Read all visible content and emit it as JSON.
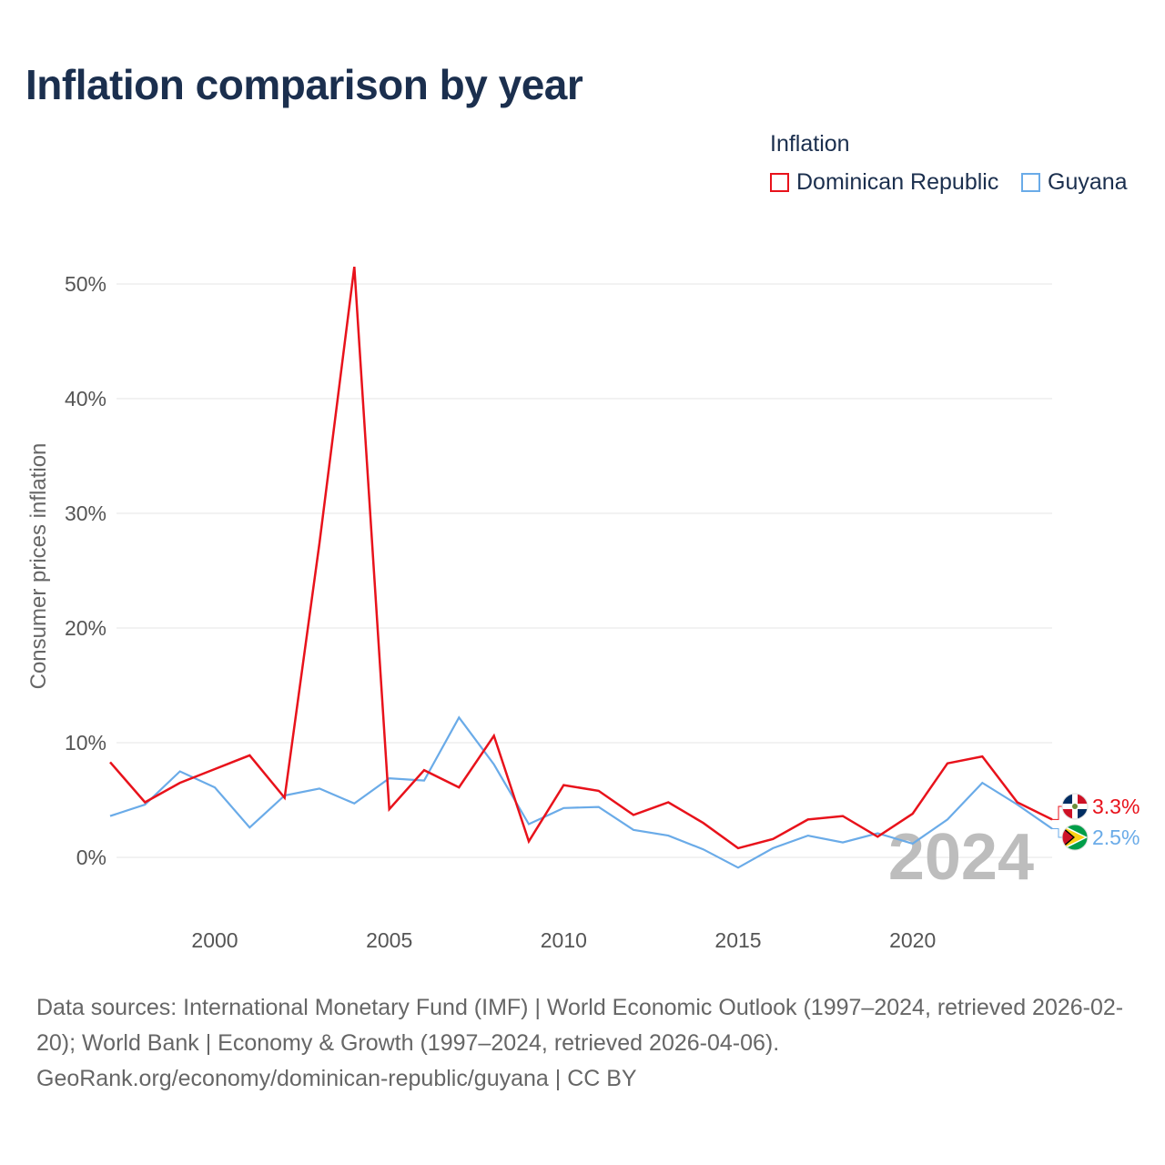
{
  "title": "Inflation comparison by year",
  "legend": {
    "title": "Inflation",
    "items": [
      {
        "label": "Dominican Republic",
        "color": "#e8121b"
      },
      {
        "label": "Guyana",
        "color": "#6aabe8"
      }
    ]
  },
  "watermark_year": "2024",
  "footer": {
    "sources": "Data sources: International Monetary Fund (IMF) | World Economic Outlook (1997–2024, retrieved 2026-02-20); World Bank | Economy & Growth (1997–2024, retrieved 2026-04-06).",
    "attribution": "GeoRank.org/economy/dominican-republic/guyana | CC BY"
  },
  "chart_data": {
    "type": "line",
    "title": "Inflation comparison by year",
    "xlabel": "",
    "ylabel": "Consumer prices inflation",
    "xlim": [
      1997,
      2024
    ],
    "ylim": [
      -5,
      55
    ],
    "yticks": [
      0,
      10,
      20,
      30,
      40,
      50
    ],
    "ytick_labels": [
      "0%",
      "10%",
      "20%",
      "30%",
      "40%",
      "50%"
    ],
    "xticks": [
      2000,
      2005,
      2010,
      2015,
      2020
    ],
    "xtick_labels": [
      "2000",
      "2005",
      "2010",
      "2015",
      "2020"
    ],
    "grid": true,
    "legend_position": "top-right",
    "x": [
      1997,
      1998,
      1999,
      2000,
      2001,
      2002,
      2003,
      2004,
      2005,
      2006,
      2007,
      2008,
      2009,
      2010,
      2011,
      2012,
      2013,
      2014,
      2015,
      2016,
      2017,
      2018,
      2019,
      2020,
      2021,
      2022,
      2023,
      2024
    ],
    "series": [
      {
        "name": "Dominican Republic",
        "color": "#e8121b",
        "flag": "dominican-republic-flag-icon",
        "end_label": "3.3%",
        "values": [
          8.3,
          4.8,
          6.5,
          7.7,
          8.9,
          5.2,
          27.4,
          51.5,
          4.2,
          7.6,
          6.1,
          10.6,
          1.4,
          6.3,
          5.8,
          3.7,
          4.8,
          3.0,
          0.8,
          1.6,
          3.3,
          3.6,
          1.8,
          3.8,
          8.2,
          8.8,
          4.8,
          3.3
        ]
      },
      {
        "name": "Guyana",
        "color": "#6aabe8",
        "flag": "guyana-flag-icon",
        "end_label": "2.5%",
        "values": [
          3.6,
          4.6,
          7.5,
          6.1,
          2.6,
          5.4,
          6.0,
          4.7,
          6.9,
          6.7,
          12.2,
          8.1,
          2.9,
          4.3,
          4.4,
          2.4,
          1.9,
          0.7,
          -0.9,
          0.8,
          1.9,
          1.3,
          2.1,
          1.2,
          3.3,
          6.5,
          4.6,
          2.5
        ]
      }
    ]
  }
}
